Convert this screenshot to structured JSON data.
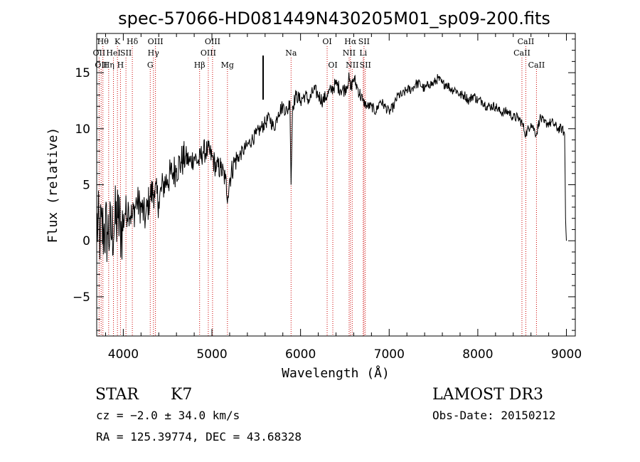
{
  "chart_data": {
    "type": "line",
    "title": "spec-57066-HD081449N430205M01_sp09-200.fits",
    "xlabel": "Wavelength (Å)",
    "ylabel": "Flux (relative)",
    "xlim": [
      3700,
      9100
    ],
    "ylim": [
      -8.5,
      18.5
    ],
    "xticks": [
      4000,
      5000,
      6000,
      7000,
      8000,
      9000
    ],
    "yticks": [
      -5,
      0,
      5,
      10,
      15
    ],
    "grid": false,
    "series": [
      {
        "name": "flux",
        "x": [
          3700,
          3740,
          3780,
          3820,
          3860,
          3900,
          3940,
          3980,
          4020,
          4060,
          4100,
          4150,
          4200,
          4250,
          4300,
          4350,
          4400,
          4450,
          4500,
          4550,
          4600,
          4650,
          4700,
          4750,
          4800,
          4850,
          4900,
          4950,
          5000,
          5050,
          5100,
          5150,
          5180,
          5200,
          5250,
          5300,
          5350,
          5400,
          5450,
          5500,
          5550,
          5600,
          5650,
          5700,
          5750,
          5800,
          5850,
          5880,
          5893,
          5910,
          5950,
          6000,
          6050,
          6100,
          6150,
          6200,
          6250,
          6300,
          6350,
          6400,
          6450,
          6500,
          6550,
          6563,
          6600,
          6650,
          6700,
          6750,
          6800,
          6850,
          6900,
          6950,
          7000,
          7050,
          7100,
          7150,
          7200,
          7250,
          7300,
          7350,
          7400,
          7450,
          7500,
          7550,
          7600,
          7650,
          7700,
          7750,
          7800,
          7850,
          7900,
          7950,
          8000,
          8050,
          8100,
          8150,
          8200,
          8250,
          8300,
          8350,
          8400,
          8450,
          8500,
          8542,
          8600,
          8662,
          8700,
          8750,
          8800,
          8850,
          8900,
          8950,
          8980,
          8990,
          9000
        ],
        "values": [
          1.5,
          0.5,
          1.0,
          0.8,
          0.5,
          1.5,
          2.0,
          1.0,
          2.5,
          3.0,
          2.0,
          3.5,
          3.0,
          2.0,
          4.0,
          4.5,
          3.5,
          5.0,
          5.5,
          6.0,
          6.5,
          7.0,
          7.5,
          7.0,
          7.5,
          7.0,
          8.0,
          8.0,
          7.5,
          6.5,
          6.5,
          5.5,
          4.0,
          5.5,
          7.0,
          7.5,
          8.0,
          8.5,
          9.0,
          9.5,
          10.0,
          10.5,
          11.0,
          10.0,
          11.5,
          12.0,
          11.5,
          12.5,
          5.0,
          12.0,
          13.0,
          12.5,
          13.0,
          12.5,
          13.5,
          13.0,
          12.5,
          13.0,
          13.5,
          14.0,
          13.5,
          13.5,
          14.5,
          13.5,
          14.5,
          13.5,
          12.5,
          12.0,
          12.0,
          11.5,
          12.5,
          12.0,
          11.5,
          12.0,
          13.0,
          13.0,
          13.5,
          13.5,
          14.0,
          14.0,
          13.5,
          14.0,
          14.0,
          14.5,
          14.0,
          14.0,
          13.5,
          13.5,
          13.0,
          13.0,
          12.5,
          13.0,
          12.5,
          12.5,
          12.0,
          12.0,
          12.0,
          11.5,
          11.5,
          11.5,
          11.0,
          11.0,
          10.5,
          9.5,
          10.5,
          9.5,
          11.0,
          10.5,
          10.5,
          10.5,
          10.0,
          10.0,
          9.5,
          2.0,
          0.0
        ]
      }
    ],
    "line_markers": [
      {
        "wavelength": 3727,
        "label": "OII",
        "row": 2
      },
      {
        "wavelength": 3750,
        "label": "OII",
        "row": 3
      },
      {
        "wavelength": 3770,
        "label": "Hθ",
        "row": 1
      },
      {
        "wavelength": 3835,
        "label": "Hη",
        "row": 3
      },
      {
        "wavelength": 3889,
        "label": "HeI",
        "row": 2
      },
      {
        "wavelength": 3934,
        "label": "K",
        "row": 1
      },
      {
        "wavelength": 3968,
        "label": "H",
        "row": 3
      },
      {
        "wavelength": 4030,
        "label": "SII",
        "row": 2
      },
      {
        "wavelength": 4102,
        "label": "Hδ",
        "row": 1
      },
      {
        "wavelength": 4304,
        "label": "G",
        "row": 3
      },
      {
        "wavelength": 4340,
        "label": "Hγ",
        "row": 2
      },
      {
        "wavelength": 4363,
        "label": "OIII",
        "row": 1
      },
      {
        "wavelength": 4861,
        "label": "Hβ",
        "row": 3
      },
      {
        "wavelength": 4959,
        "label": "OIII",
        "row": 2
      },
      {
        "wavelength": 5007,
        "label": "OIII",
        "row": 1
      },
      {
        "wavelength": 5175,
        "label": "Mg",
        "row": 3
      },
      {
        "wavelength": 5893,
        "label": "Na",
        "row": 2
      },
      {
        "wavelength": 6300,
        "label": "OI",
        "row": 1
      },
      {
        "wavelength": 6364,
        "label": "OI",
        "row": 3
      },
      {
        "wavelength": 6548,
        "label": "NII",
        "row": 2
      },
      {
        "wavelength": 6563,
        "label": "Hα",
        "row": 1
      },
      {
        "wavelength": 6583,
        "label": "NII",
        "row": 3
      },
      {
        "wavelength": 6707,
        "label": "Li",
        "row": 2
      },
      {
        "wavelength": 6716,
        "label": "SII",
        "row": 1
      },
      {
        "wavelength": 6731,
        "label": "SII",
        "row": 3
      },
      {
        "wavelength": 8498,
        "label": "CaII",
        "row": 2
      },
      {
        "wavelength": 8542,
        "label": "CaII",
        "row": 1
      },
      {
        "wavelength": 8662,
        "label": "CaII",
        "row": 3
      }
    ]
  },
  "info": {
    "object_type": "STAR",
    "subclass": "K7",
    "survey": "LAMOST DR3",
    "cz": "cz = −2.0 ± 34.0 km/s",
    "obs_date": "Obs-Date: 20150212",
    "coords": "RA = 125.39774, DEC =  43.68328"
  },
  "colors": {
    "axis": "#000000",
    "spectrum": "#000000",
    "line_marker": "#cc0000",
    "background": "#ffffff"
  }
}
